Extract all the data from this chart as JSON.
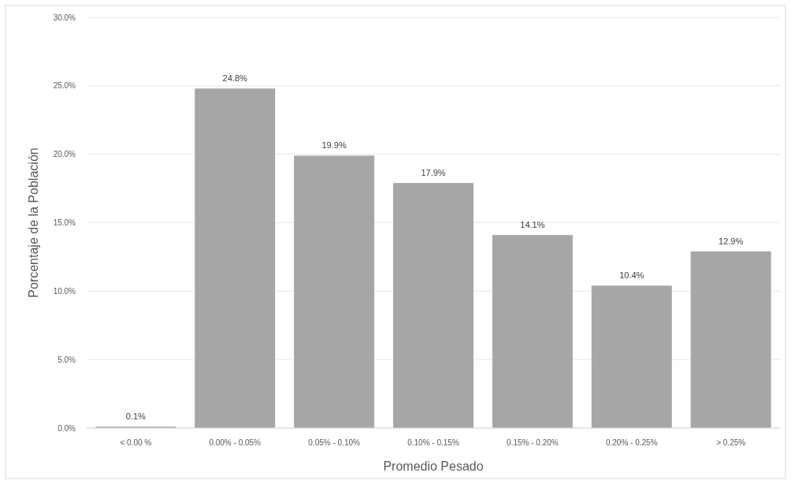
{
  "chart_data": {
    "type": "bar",
    "xlabel": "Promedio Pesado",
    "ylabel": "Porcentaje de la Población",
    "categories": [
      "< 0.00 %",
      "0.00% - 0.05%",
      "0.05% - 0.10%",
      "0.10% - 0.15%",
      "0.15% - 0.20%",
      "0.20% - 0.25%",
      "> 0.25%"
    ],
    "values": [
      0.1,
      24.8,
      19.9,
      17.9,
      14.1,
      10.4,
      12.9
    ],
    "value_labels": [
      "0.1%",
      "24.8%",
      "19.9%",
      "17.9%",
      "14.1%",
      "10.4%",
      "12.9%"
    ],
    "color": "#a6a6a6",
    "ylim": [
      0,
      30
    ],
    "yticks": [
      {
        "value": 0,
        "label": "0.0%"
      },
      {
        "value": 5,
        "label": "5.0%"
      },
      {
        "value": 10,
        "label": "10.0%"
      },
      {
        "value": 15,
        "label": "15.0%"
      },
      {
        "value": 20,
        "label": "20.0%"
      },
      {
        "value": 25,
        "label": "25.0%"
      },
      {
        "value": 30,
        "label": "30.0%"
      }
    ],
    "grid": "y"
  }
}
